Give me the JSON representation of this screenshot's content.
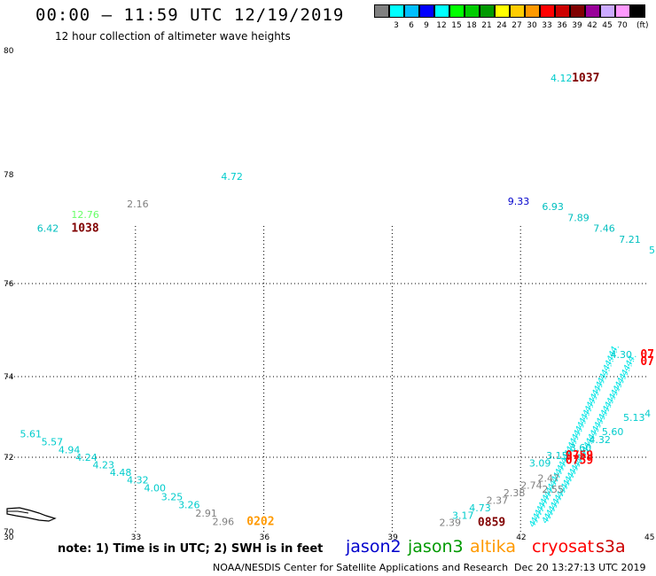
{
  "header": {
    "title": "00:00 – 11:59 UTC 12/19/2019",
    "subtitle": "12 hour collection of altimeter wave heights"
  },
  "legend": {
    "swatches": [
      {
        "color": "#808080",
        "label": ""
      },
      {
        "color": "#00ffff",
        "label": "3"
      },
      {
        "color": "#00bfff",
        "label": "6"
      },
      {
        "color": "#0000ff",
        "label": "9"
      },
      {
        "color": "#00ffff",
        "label": "12"
      },
      {
        "color": "#00ff00",
        "label": "15"
      },
      {
        "color": "#00cc00",
        "label": "18"
      },
      {
        "color": "#009900",
        "label": "21"
      },
      {
        "color": "#ffff00",
        "label": "24"
      },
      {
        "color": "#ffcc00",
        "label": "27"
      },
      {
        "color": "#ff9900",
        "label": "30"
      },
      {
        "color": "#ff0000",
        "label": "33"
      },
      {
        "color": "#cc0000",
        "label": "36"
      },
      {
        "color": "#800000",
        "label": "39"
      },
      {
        "color": "#990099",
        "label": "42"
      },
      {
        "color": "#ccaaff",
        "label": "45"
      },
      {
        "color": "#ff99ff",
        "label": "70"
      },
      {
        "color": "#000000",
        "label": ""
      }
    ],
    "unit": "(ft)"
  },
  "axes": {
    "lat_labels": [
      "80",
      "78",
      "76",
      "74",
      "72",
      "70"
    ],
    "lon_labels": [
      "30",
      "33",
      "36",
      "39",
      "42",
      "45"
    ]
  },
  "map_data": {
    "lon_range": [
      30,
      45
    ],
    "lat_range": [
      70,
      80
    ],
    "labels": [
      {
        "text": "4.12",
        "lon": 42.7,
        "lat": 79.5,
        "color": "#00cccc"
      },
      {
        "text": "1037",
        "lon": 43.2,
        "lat": 79.5,
        "color": "#800000",
        "bold": true
      },
      {
        "text": "4.72",
        "lon": 35.0,
        "lat": 77.9,
        "color": "#00cccc"
      },
      {
        "text": "2.16",
        "lon": 32.8,
        "lat": 77.4,
        "color": "#808080"
      },
      {
        "text": "12.76",
        "lon": 31.5,
        "lat": 77.2,
        "color": "#66ff66"
      },
      {
        "text": "6.42",
        "lon": 30.7,
        "lat": 76.95,
        "color": "#00bfbf"
      },
      {
        "text": "1038",
        "lon": 31.5,
        "lat": 76.95,
        "color": "#800000",
        "bold": true
      },
      {
        "text": "9.33",
        "lon": 41.7,
        "lat": 77.45,
        "color": "#0000cc"
      },
      {
        "text": "6.93",
        "lon": 42.5,
        "lat": 77.35,
        "color": "#00bfbf"
      },
      {
        "text": "7.89",
        "lon": 43.1,
        "lat": 77.15,
        "color": "#00bfbf"
      },
      {
        "text": "7.46",
        "lon": 43.7,
        "lat": 76.95,
        "color": "#00bfbf"
      },
      {
        "text": "7.21",
        "lon": 44.3,
        "lat": 76.75,
        "color": "#00bfbf"
      },
      {
        "text": "5",
        "lon": 45.0,
        "lat": 76.55,
        "color": "#00cccc"
      },
      {
        "text": "4.30",
        "lon": 44.1,
        "lat": 74.4,
        "color": "#00cccc"
      },
      {
        "text": "07",
        "lon": 44.8,
        "lat": 74.4,
        "color": "#ff0000",
        "bold": true
      },
      {
        "text": "07",
        "lon": 44.8,
        "lat": 74.25,
        "color": "#ff0000",
        "bold": true
      },
      {
        "text": "5.13",
        "lon": 44.4,
        "lat": 72.9,
        "color": "#00cccc"
      },
      {
        "text": "4",
        "lon": 44.9,
        "lat": 73.0,
        "color": "#00cccc"
      },
      {
        "text": "5.60",
        "lon": 43.9,
        "lat": 72.55,
        "color": "#00cccc"
      },
      {
        "text": "4.32",
        "lon": 43.6,
        "lat": 72.35,
        "color": "#00cccc"
      },
      {
        "text": "0759",
        "lon": 43.05,
        "lat": 71.95,
        "color": "#ff0000",
        "bold": true
      },
      {
        "text": "0759",
        "lon": 43.05,
        "lat": 71.82,
        "color": "#ff0000",
        "bold": true
      },
      {
        "text": "5.61",
        "lon": 30.3,
        "lat": 72.5,
        "color": "#00cccc"
      },
      {
        "text": "5.57",
        "lon": 30.8,
        "lat": 72.3,
        "color": "#00cccc"
      },
      {
        "text": "4.94",
        "lon": 31.2,
        "lat": 72.1,
        "color": "#00cccc"
      },
      {
        "text": "4.24",
        "lon": 31.6,
        "lat": 71.9,
        "color": "#00cccc"
      },
      {
        "text": "4.23",
        "lon": 32.0,
        "lat": 71.7,
        "color": "#00cccc"
      },
      {
        "text": "4.48",
        "lon": 32.4,
        "lat": 71.5,
        "color": "#00cccc"
      },
      {
        "text": "4.32",
        "lon": 32.8,
        "lat": 71.3,
        "color": "#00cccc"
      },
      {
        "text": "4.00",
        "lon": 33.2,
        "lat": 71.08,
        "color": "#00cccc"
      },
      {
        "text": "3.25",
        "lon": 33.6,
        "lat": 70.85,
        "color": "#00cccc"
      },
      {
        "text": "3.26",
        "lon": 34.0,
        "lat": 70.63,
        "color": "#00cccc"
      },
      {
        "text": "2.91",
        "lon": 34.4,
        "lat": 70.4,
        "color": "#808080"
      },
      {
        "text": "2.96",
        "lon": 34.8,
        "lat": 70.18,
        "color": "#808080"
      },
      {
        "text": "0202",
        "lon": 35.6,
        "lat": 70.18,
        "color": "#ff9900",
        "bold": true
      },
      {
        "text": "2.39",
        "lon": 40.1,
        "lat": 70.15,
        "color": "#808080"
      },
      {
        "text": "0859",
        "lon": 41.0,
        "lat": 70.15,
        "color": "#800000",
        "bold": true
      },
      {
        "text": "3.17",
        "lon": 40.4,
        "lat": 70.35,
        "color": "#00cccc"
      },
      {
        "text": "4.73",
        "lon": 40.8,
        "lat": 70.55,
        "color": "#00cccc"
      },
      {
        "text": "2.37",
        "lon": 41.2,
        "lat": 70.75,
        "color": "#808080"
      },
      {
        "text": "2.38",
        "lon": 41.6,
        "lat": 70.95,
        "color": "#808080"
      },
      {
        "text": "2.74",
        "lon": 42.0,
        "lat": 71.15,
        "color": "#808080"
      },
      {
        "text": "2.47",
        "lon": 42.4,
        "lat": 71.35,
        "color": "#808080"
      },
      {
        "text": "3.09",
        "lon": 42.2,
        "lat": 71.75,
        "color": "#00cccc"
      },
      {
        "text": "3.15",
        "lon": 42.6,
        "lat": 71.95,
        "color": "#00cccc"
      },
      {
        "text": "3.60",
        "lon": 43.15,
        "lat": 72.15,
        "color": "#00cccc"
      },
      {
        "text": "2.55",
        "lon": 42.5,
        "lat": 71.05,
        "color": "#808080"
      }
    ],
    "tracks": [
      {
        "color": "#00e5e5",
        "from": [
          42.3,
          70.1
        ],
        "to": [
          44.2,
          74.5
        ],
        "step": 0.22
      },
      {
        "color": "#00e5e5",
        "from": [
          42.6,
          70.2
        ],
        "to": [
          44.6,
          74.3
        ],
        "step": 0.22
      }
    ]
  },
  "footer": {
    "note": "note:  1) Time is in UTC; 2) SWH is in feet",
    "satellites": [
      {
        "name": "jason2",
        "color": "#0000cc"
      },
      {
        "name": "jason3",
        "color": "#009900"
      },
      {
        "name": "altika",
        "color": "#ff9900"
      },
      {
        "name": "cryosat",
        "color": "#ff0000"
      },
      {
        "name": "s3a",
        "color": "#cc0000"
      }
    ],
    "credit": "NOAA/NESDIS Center for Satellite Applications and Research",
    "timestamp": "Dec 20 13:27:13 UTC 2019"
  }
}
